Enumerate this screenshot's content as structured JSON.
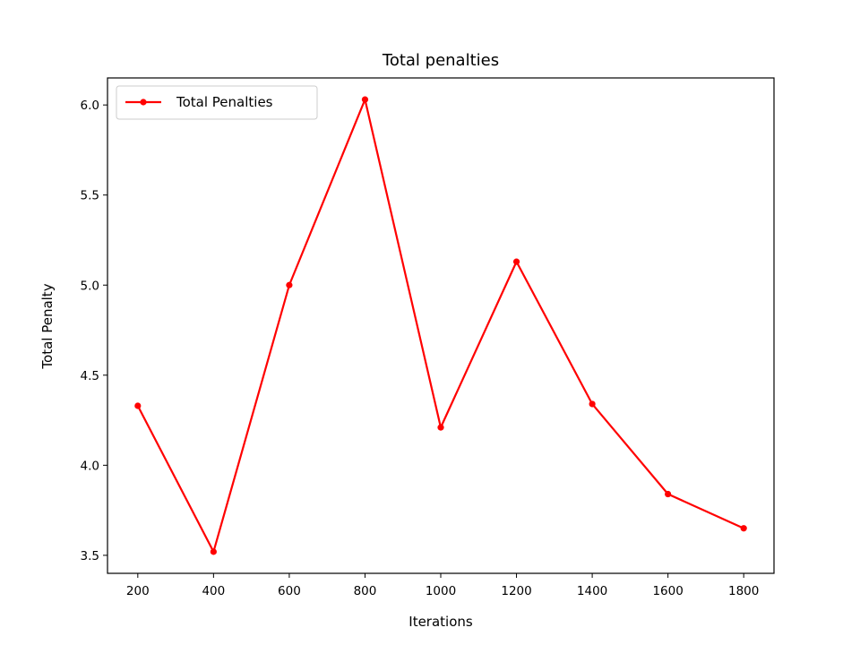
{
  "chart_data": {
    "type": "line",
    "title": "Total penalties",
    "xlabel": "Iterations",
    "ylabel": "Total Penalty",
    "x": [
      200,
      400,
      600,
      800,
      1000,
      1200,
      1400,
      1600,
      1800
    ],
    "series": [
      {
        "name": "Total Penalties",
        "color": "#ff0000",
        "marker": "circle",
        "values": [
          4.33,
          3.52,
          5.0,
          6.03,
          4.21,
          5.13,
          4.34,
          3.84,
          3.65
        ]
      }
    ],
    "xlim": [
      120,
      1880
    ],
    "ylim": [
      3.4,
      6.15
    ],
    "xticks": [
      200,
      400,
      600,
      800,
      1000,
      1200,
      1400,
      1600,
      1800
    ],
    "xtick_labels": [
      "200",
      "400",
      "600",
      "800",
      "1000",
      "1200",
      "1400",
      "1600",
      "1800"
    ],
    "yticks": [
      3.5,
      4.0,
      4.5,
      5.0,
      5.5,
      6.0
    ],
    "ytick_labels": [
      "3.5",
      "4.0",
      "4.5",
      "5.0",
      "5.5",
      "6.0"
    ],
    "grid": false,
    "legend_position": "top-left"
  }
}
